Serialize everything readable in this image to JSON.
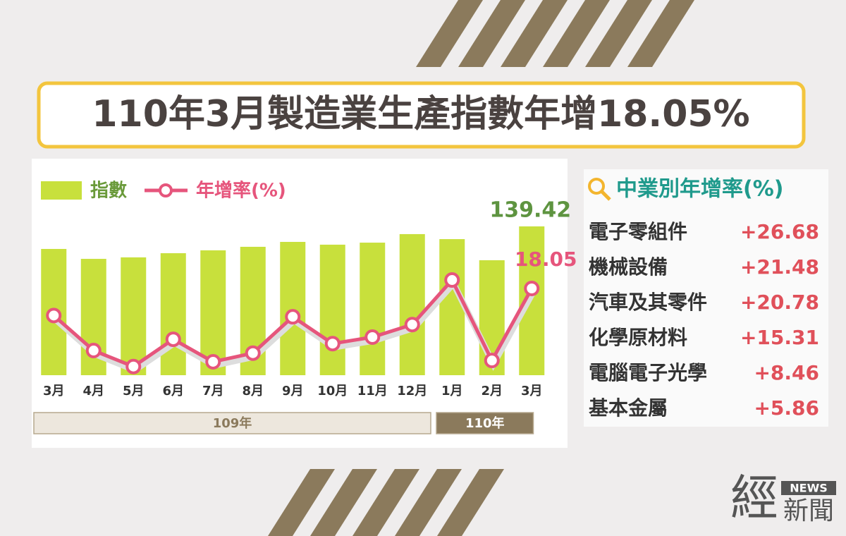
{
  "title": "110年3月製造業生產指數年增18.05%",
  "chart_data": {
    "type": "bar-line",
    "categories": [
      "3月",
      "4月",
      "5月",
      "6月",
      "7月",
      "8月",
      "9月",
      "10月",
      "11月",
      "12月",
      "1月",
      "2月",
      "3月"
    ],
    "series": [
      {
        "name": "指數",
        "type": "bar",
        "color": "#c8e03c",
        "values": [
          118.3,
          109,
          110.4,
          114.3,
          117,
          120.3,
          124.9,
          122.3,
          124.2,
          132.2,
          127.5,
          107.7,
          139.42
        ]
      },
      {
        "name": "年增率(%)",
        "type": "line",
        "axis": "y2",
        "color": "#e6557c",
        "values": [
          11.8,
          3.7,
          0,
          6.3,
          1.1,
          3.1,
          11.5,
          5.3,
          6.8,
          9.7,
          20,
          1.4,
          18.05
        ]
      }
    ],
    "ylim": [
      0,
      150
    ],
    "y2lim": [
      -2,
      35
    ],
    "year_groups": [
      {
        "label": "109年",
        "count": 10
      },
      {
        "label": "110年",
        "count": 3
      }
    ]
  },
  "industry_panel": {
    "title": "中業別年增率(%)",
    "items": [
      {
        "name": "電子零組件",
        "value": "+26.68"
      },
      {
        "name": "機械設備",
        "value": "+21.48"
      },
      {
        "name": "汽車及其零件",
        "value": "+20.78"
      },
      {
        "name": "化學原材料",
        "value": "+15.31"
      },
      {
        "name": "電腦電子光學",
        "value": "+8.46"
      },
      {
        "name": "基本金屬",
        "value": "+5.86"
      }
    ]
  },
  "logo": {
    "mark": "經",
    "badge": "NEWS",
    "text": "新聞"
  }
}
